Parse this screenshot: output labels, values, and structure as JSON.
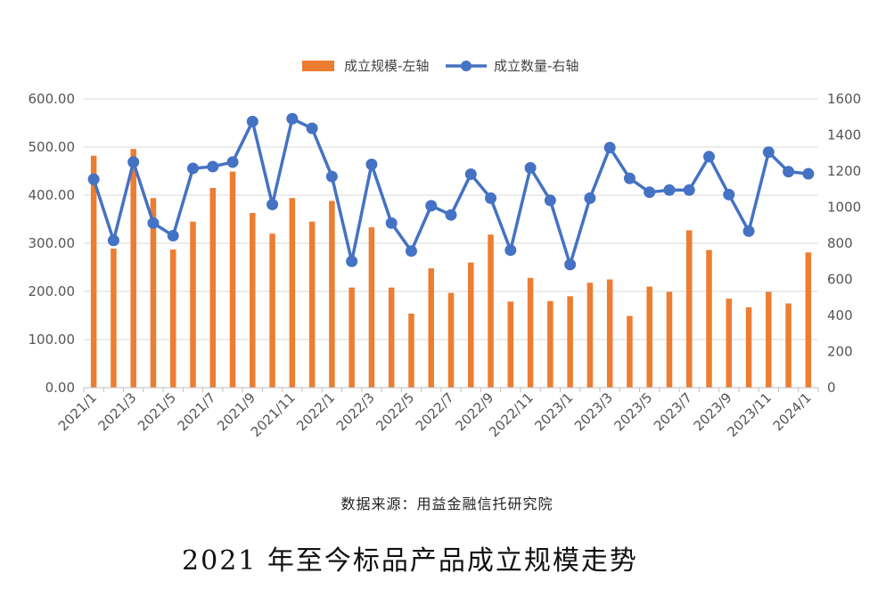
{
  "chart_data": {
    "type": "bar+line",
    "legend_position": "top-center",
    "grid": true,
    "x": [
      "2021/1",
      "2021/2",
      "2021/3",
      "2021/4",
      "2021/5",
      "2021/6",
      "2021/7",
      "2021/8",
      "2021/9",
      "2021/10",
      "2021/11",
      "2021/12",
      "2022/1",
      "2022/2",
      "2022/3",
      "2022/4",
      "2022/5",
      "2022/6",
      "2022/7",
      "2022/8",
      "2022/9",
      "2022/10",
      "2022/11",
      "2022/12",
      "2023/1",
      "2023/2",
      "2023/3",
      "2023/4",
      "2023/5",
      "2023/6",
      "2023/7",
      "2023/8",
      "2023/9",
      "2023/10",
      "2023/11",
      "2023/12",
      "2024/1"
    ],
    "x_tick_labels": [
      "2021/1",
      "2021/3",
      "2021/5",
      "2021/7",
      "2021/9",
      "2021/11",
      "2022/1",
      "2022/3",
      "2022/5",
      "2022/7",
      "2022/9",
      "2022/11",
      "2023/1",
      "2023/3",
      "2023/5",
      "2023/7",
      "2023/9",
      "2023/11",
      "2024/1"
    ],
    "left_axis": {
      "range": [
        0,
        600
      ],
      "ticks": [
        "0.00",
        "100.00",
        "200.00",
        "300.00",
        "400.00",
        "500.00",
        "600.00"
      ]
    },
    "right_axis": {
      "range": [
        0,
        1600
      ],
      "ticks": [
        "0",
        "200",
        "400",
        "600",
        "800",
        "1000",
        "1200",
        "1400",
        "1600"
      ]
    },
    "series": [
      {
        "name": "成立规模-左轴",
        "type": "bar",
        "axis": "left",
        "color": "#ED7D31",
        "values": [
          482,
          289,
          496,
          394,
          287,
          345,
          415,
          449,
          363,
          320,
          394,
          345,
          388,
          208,
          333,
          208,
          154,
          248,
          197,
          260,
          318,
          179,
          228,
          180,
          190,
          218,
          225,
          149,
          210,
          199,
          327,
          286,
          185,
          167,
          199,
          175,
          281
        ]
      },
      {
        "name": "成立数量-右轴",
        "type": "line",
        "axis": "right",
        "color": "#4472C4",
        "values": [
          1155,
          816,
          1250,
          912,
          842,
          1215,
          1225,
          1250,
          1475,
          1015,
          1490,
          1437,
          1170,
          700,
          1237,
          912,
          757,
          1008,
          957,
          1183,
          1050,
          762,
          1218,
          1038,
          682,
          1050,
          1330,
          1160,
          1083,
          1095,
          1095,
          1280,
          1070,
          867,
          1305,
          1197,
          1185
        ]
      }
    ]
  },
  "source_text": "数据来源：用益金融信托研究院",
  "caption": "2021 年至今标品产品成立规模走势"
}
